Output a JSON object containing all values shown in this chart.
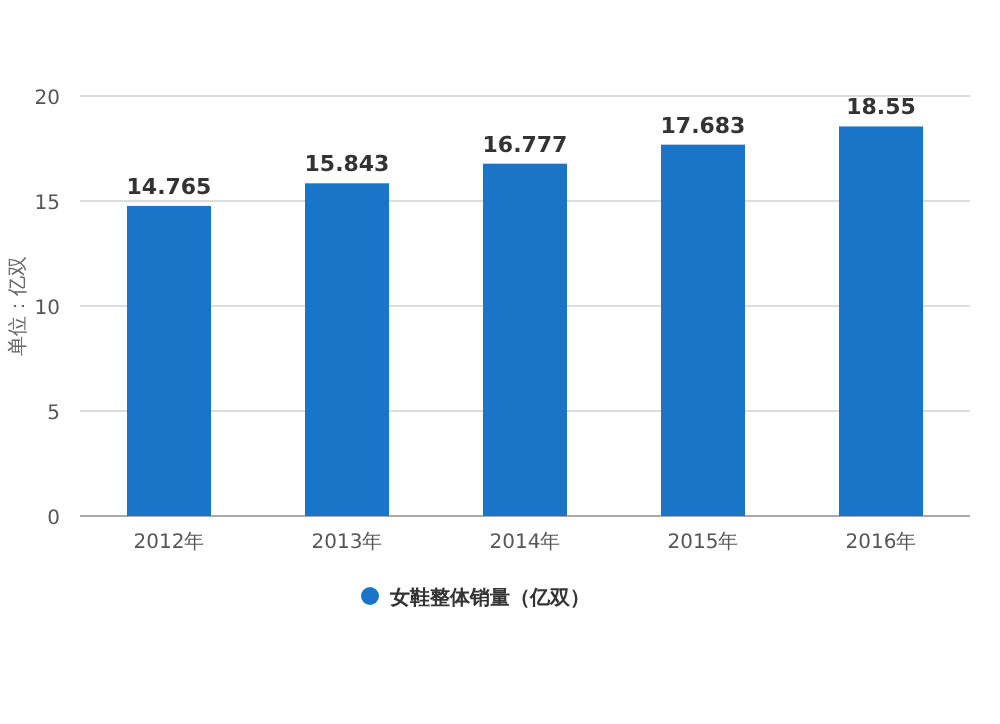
{
  "chart_data": {
    "type": "bar",
    "ylabel": "单位：亿双",
    "categories": [
      "2012年",
      "2013年",
      "2014年",
      "2015年",
      "2016年"
    ],
    "series": [
      {
        "name": "女鞋整体销量（亿双）",
        "color": "#1a75c8",
        "values": [
          14.765,
          15.843,
          16.777,
          17.683,
          18.55
        ]
      }
    ],
    "ylim": [
      0,
      20
    ],
    "yticks": [
      0,
      5,
      10,
      15,
      20
    ],
    "grid": "y",
    "legend": "bottom",
    "data_labels": true
  }
}
